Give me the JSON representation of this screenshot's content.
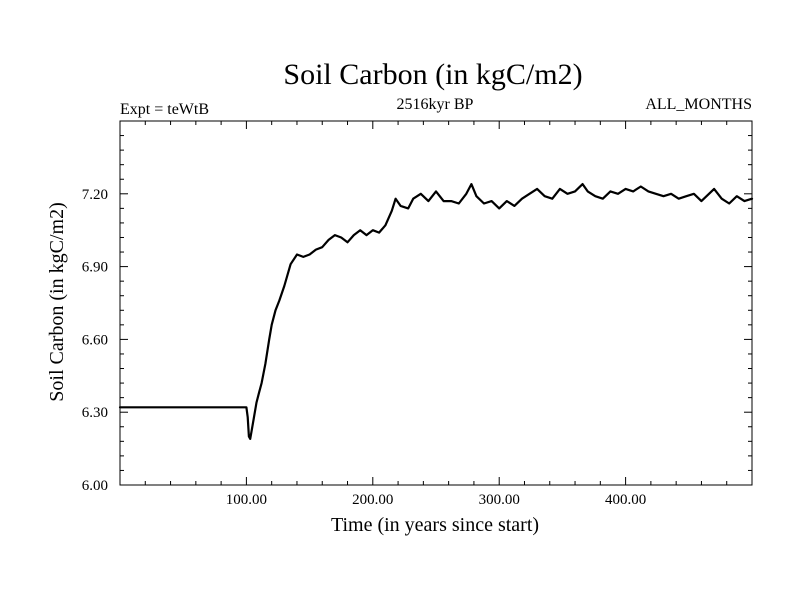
{
  "chart_data": {
    "type": "line",
    "title": "Soil Carbon (in kgC/m2)",
    "subtitle_left": "Expt = teWtB",
    "subtitle_center": "2516kyr BP",
    "subtitle_right": "ALL_MONTHS",
    "xlabel": "Time (in years since start)",
    "ylabel": "Soil Carbon (in kgC/m2)",
    "xlim": [
      0,
      500
    ],
    "ylim": [
      6.0,
      7.5
    ],
    "x_ticks": [
      100,
      200,
      300,
      400
    ],
    "x_tick_labels": [
      "100.00",
      "200.00",
      "300.00",
      "400.00"
    ],
    "y_ticks": [
      6.0,
      6.3,
      6.6,
      6.9,
      7.2
    ],
    "y_tick_labels": [
      "6.00",
      "6.30",
      "6.60",
      "6.90",
      "7.20"
    ],
    "grid": false,
    "series": [
      {
        "name": "Soil Carbon",
        "color": "#000000",
        "x": [
          0,
          100,
          101,
          102,
          103,
          104,
          106,
          108,
          110,
          112,
          115,
          118,
          120,
          123,
          126,
          130,
          135,
          140,
          145,
          150,
          155,
          160,
          165,
          170,
          175,
          180,
          185,
          190,
          195,
          200,
          205,
          210,
          215,
          218,
          222,
          228,
          232,
          238,
          244,
          250,
          256,
          262,
          268,
          274,
          278,
          282,
          288,
          294,
          300,
          306,
          312,
          318,
          324,
          330,
          336,
          342,
          348,
          354,
          360,
          366,
          370,
          376,
          382,
          388,
          394,
          400,
          406,
          412,
          418,
          424,
          430,
          436,
          442,
          448,
          454,
          460,
          466,
          470,
          476,
          482,
          488,
          494,
          500
        ],
        "values": [
          6.32,
          6.32,
          6.28,
          6.2,
          6.19,
          6.22,
          6.28,
          6.34,
          6.38,
          6.42,
          6.5,
          6.6,
          6.66,
          6.72,
          6.76,
          6.82,
          6.91,
          6.95,
          6.94,
          6.95,
          6.97,
          6.98,
          7.01,
          7.03,
          7.02,
          7.0,
          7.03,
          7.05,
          7.03,
          7.05,
          7.04,
          7.07,
          7.13,
          7.18,
          7.15,
          7.14,
          7.18,
          7.2,
          7.17,
          7.21,
          7.17,
          7.17,
          7.16,
          7.2,
          7.24,
          7.19,
          7.16,
          7.17,
          7.14,
          7.17,
          7.15,
          7.18,
          7.2,
          7.22,
          7.19,
          7.18,
          7.22,
          7.2,
          7.21,
          7.24,
          7.21,
          7.19,
          7.18,
          7.21,
          7.2,
          7.22,
          7.21,
          7.23,
          7.21,
          7.2,
          7.19,
          7.2,
          7.18,
          7.19,
          7.2,
          7.17,
          7.2,
          7.22,
          7.18,
          7.16,
          7.19,
          7.17,
          7.18
        ]
      }
    ]
  }
}
